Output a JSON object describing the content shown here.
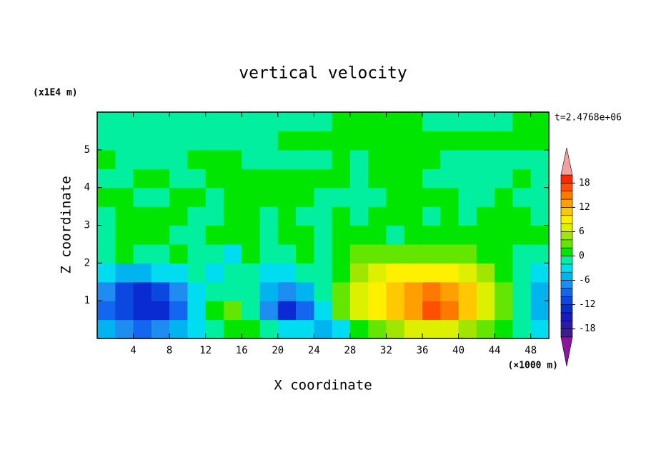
{
  "chart_data": {
    "type": "contour",
    "title": "vertical velocity",
    "xlabel": "X coordinate",
    "ylabel": "Z coordinate",
    "x_unit": "(×1000 m)",
    "y_unit": "(x1E4 m)",
    "time_label": "t=2.4768e+06",
    "xlim": [
      0,
      50
    ],
    "ylim": [
      0,
      6
    ],
    "xticks": [
      4,
      8,
      12,
      16,
      20,
      24,
      28,
      32,
      36,
      40,
      44,
      48
    ],
    "yticks": [
      1,
      2,
      3,
      4,
      5
    ],
    "x": [
      1,
      3,
      5,
      7,
      9,
      11,
      13,
      15,
      17,
      19,
      21,
      23,
      25,
      27,
      29,
      31,
      33,
      35,
      37,
      39,
      41,
      43,
      45,
      47,
      49
    ],
    "y": [
      0.25,
      0.75,
      1.25,
      1.75,
      2.25,
      2.75,
      3.25,
      3.75,
      4.25,
      4.75,
      5.25,
      5.75
    ],
    "z": [
      [
        -5,
        -7,
        -9,
        -7,
        -5,
        -3,
        -1,
        1,
        1,
        -1,
        -3,
        -3,
        -5,
        -3,
        1,
        3,
        5,
        7,
        7,
        7,
        5,
        3,
        1,
        -1,
        -3
      ],
      [
        -9,
        -11,
        -13,
        -13,
        -9,
        -3,
        1,
        3,
        -1,
        -7,
        -13,
        -9,
        -3,
        3,
        7,
        9,
        11,
        13,
        17,
        15,
        11,
        7,
        3,
        -1,
        -5
      ],
      [
        -7,
        -11,
        -13,
        -11,
        -7,
        -3,
        -1,
        -1,
        -1,
        -5,
        -7,
        -5,
        -1,
        3,
        7,
        9,
        11,
        13,
        15,
        13,
        11,
        7,
        3,
        -1,
        -5
      ],
      [
        -3,
        -5,
        -5,
        -3,
        -3,
        -1,
        -3,
        -1,
        -1,
        -3,
        -3,
        -1,
        -1,
        1,
        5,
        7,
        9,
        9,
        9,
        9,
        7,
        5,
        1,
        -1,
        -3
      ],
      [
        -1,
        1,
        -1,
        -1,
        1,
        -1,
        -1,
        -3,
        1,
        -1,
        -1,
        1,
        -1,
        1,
        3,
        3,
        3,
        3,
        3,
        3,
        3,
        1,
        1,
        -1,
        -1
      ],
      [
        -1,
        1,
        1,
        1,
        -1,
        -1,
        1,
        1,
        1,
        -1,
        1,
        1,
        -1,
        1,
        1,
        1,
        -1,
        1,
        1,
        1,
        1,
        1,
        1,
        1,
        1
      ],
      [
        -1,
        1,
        1,
        1,
        1,
        -1,
        -1,
        1,
        1,
        -1,
        1,
        -1,
        -1,
        1,
        -1,
        1,
        1,
        1,
        -1,
        1,
        -1,
        1,
        1,
        1,
        -1
      ],
      [
        1,
        1,
        -1,
        -1,
        1,
        1,
        -1,
        1,
        1,
        1,
        1,
        1,
        -1,
        -1,
        -1,
        -1,
        1,
        1,
        1,
        1,
        -1,
        -1,
        1,
        -1,
        -1
      ],
      [
        -1,
        -1,
        1,
        1,
        -1,
        -1,
        1,
        1,
        1,
        1,
        1,
        1,
        1,
        1,
        -1,
        1,
        1,
        1,
        -1,
        -1,
        -1,
        -1,
        -1,
        1,
        -1
      ],
      [
        1,
        -1,
        -1,
        -1,
        -1,
        1,
        1,
        1,
        -1,
        -1,
        -1,
        -1,
        -1,
        1,
        -1,
        1,
        1,
        1,
        1,
        -1,
        -1,
        -1,
        -1,
        -1,
        -1
      ],
      [
        -1,
        -1,
        -1,
        -1,
        -1,
        -1,
        -1,
        -1,
        -1,
        -1,
        1,
        1,
        1,
        1,
        1,
        1,
        1,
        1,
        1,
        1,
        1,
        1,
        1,
        1,
        1
      ],
      [
        -1,
        -1,
        -1,
        -1,
        -1,
        -1,
        -1,
        -1,
        -1,
        -1,
        -1,
        -1,
        -1,
        1,
        1,
        1,
        1,
        1,
        -1,
        -1,
        -1,
        -1,
        -1,
        1,
        1
      ]
    ],
    "colorbar": {
      "levels": [
        -20,
        -18,
        -16,
        -14,
        -12,
        -10,
        -8,
        -6,
        -4,
        -2,
        0,
        2,
        4,
        6,
        8,
        10,
        12,
        14,
        16,
        18,
        20
      ],
      "colors": [
        "#3c1e8c",
        "#2a1aa8",
        "#1a1abe",
        "#0a2ad2",
        "#0a48e0",
        "#1466f0",
        "#1e8cf0",
        "#00b4f0",
        "#00dcf0",
        "#00f0a0",
        "#00e600",
        "#64e600",
        "#a0e600",
        "#dcf000",
        "#fff000",
        "#ffc800",
        "#ffa000",
        "#ff7800",
        "#ff5000",
        "#ff2800"
      ],
      "under_color": "#8c14a0",
      "over_color": "#f4a0a0",
      "ticks": [
        -18,
        -12,
        -6,
        0,
        6,
        12,
        18
      ]
    }
  }
}
